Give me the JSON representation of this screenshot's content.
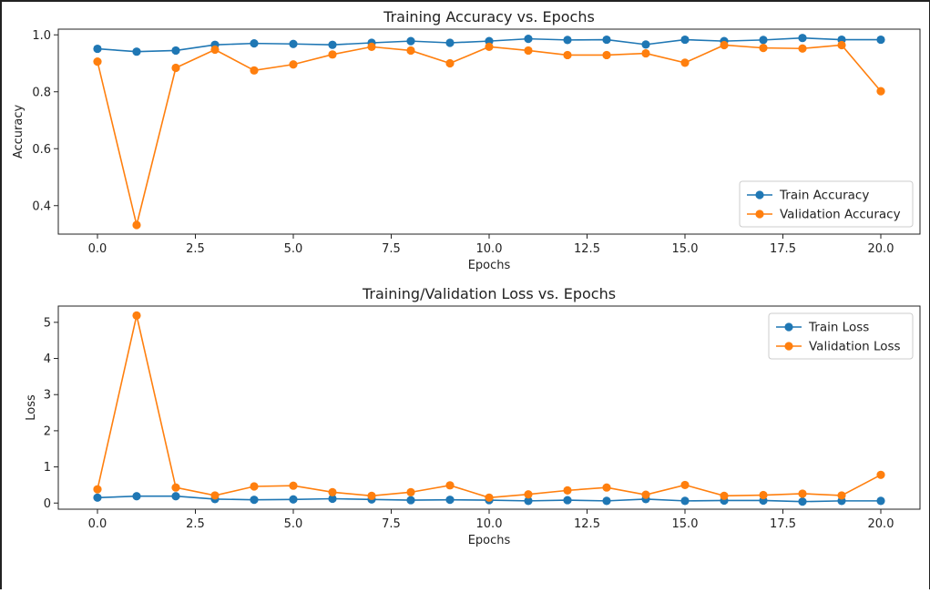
{
  "chart_data": [
    {
      "type": "line",
      "title": "Training Accuracy vs. Epochs",
      "xlabel": "Epochs",
      "ylabel": "Accuracy",
      "xlim": [
        -1,
        21
      ],
      "ylim": [
        0.3,
        1.02
      ],
      "xticks": [
        0,
        2.5,
        5,
        7.5,
        10,
        12.5,
        15,
        17.5,
        20
      ],
      "xtick_labels": [
        "0.0",
        "2.5",
        "5.0",
        "7.5",
        "10.0",
        "12.5",
        "15.0",
        "17.5",
        "20.0"
      ],
      "yticks": [
        0.4,
        0.6,
        0.8,
        1.0
      ],
      "ytick_labels": [
        "0.4",
        "0.6",
        "0.8",
        "1.0"
      ],
      "legend_position": "lower-right",
      "grid": false,
      "x": [
        0,
        1,
        2,
        3,
        4,
        5,
        6,
        7,
        8,
        9,
        10,
        11,
        12,
        13,
        14,
        15,
        16,
        17,
        18,
        19,
        20
      ],
      "series": [
        {
          "name": "Train Accuracy",
          "color": "#1f77b4",
          "values": [
            0.951,
            0.941,
            0.945,
            0.965,
            0.97,
            0.968,
            0.965,
            0.972,
            0.978,
            0.972,
            0.978,
            0.986,
            0.982,
            0.983,
            0.966,
            0.983,
            0.978,
            0.982,
            0.989,
            0.983,
            0.983
          ]
        },
        {
          "name": "Validation Accuracy",
          "color": "#ff7f0e",
          "values": [
            0.906,
            0.332,
            0.884,
            0.948,
            0.875,
            0.896,
            0.931,
            0.958,
            0.945,
            0.9,
            0.958,
            0.945,
            0.929,
            0.929,
            0.935,
            0.902,
            0.964,
            0.954,
            0.952,
            0.964,
            0.802
          ]
        }
      ]
    },
    {
      "type": "line",
      "title": "Training/Validation Loss vs. Epochs",
      "xlabel": "Epochs",
      "ylabel": "Loss",
      "xlim": [
        -1,
        21
      ],
      "ylim": [
        -0.17,
        5.45
      ],
      "xticks": [
        0,
        2.5,
        5,
        7.5,
        10,
        12.5,
        15,
        17.5,
        20
      ],
      "xtick_labels": [
        "0.0",
        "2.5",
        "5.0",
        "7.5",
        "10.0",
        "12.5",
        "15.0",
        "17.5",
        "20.0"
      ],
      "yticks": [
        0,
        1,
        2,
        3,
        4,
        5
      ],
      "ytick_labels": [
        "0",
        "1",
        "2",
        "3",
        "4",
        "5"
      ],
      "legend_position": "upper-right",
      "grid": false,
      "x": [
        0,
        1,
        2,
        3,
        4,
        5,
        6,
        7,
        8,
        9,
        10,
        11,
        12,
        13,
        14,
        15,
        16,
        17,
        18,
        19,
        20
      ],
      "series": [
        {
          "name": "Train Loss",
          "color": "#1f77b4",
          "values": [
            0.15,
            0.19,
            0.19,
            0.11,
            0.09,
            0.1,
            0.12,
            0.1,
            0.08,
            0.09,
            0.08,
            0.06,
            0.08,
            0.06,
            0.11,
            0.06,
            0.07,
            0.07,
            0.04,
            0.06,
            0.06
          ]
        },
        {
          "name": "Validation Loss",
          "color": "#ff7f0e",
          "values": [
            0.38,
            5.19,
            0.43,
            0.21,
            0.46,
            0.48,
            0.3,
            0.2,
            0.3,
            0.49,
            0.15,
            0.24,
            0.35,
            0.43,
            0.23,
            0.5,
            0.2,
            0.22,
            0.26,
            0.21,
            0.78
          ]
        }
      ]
    }
  ]
}
